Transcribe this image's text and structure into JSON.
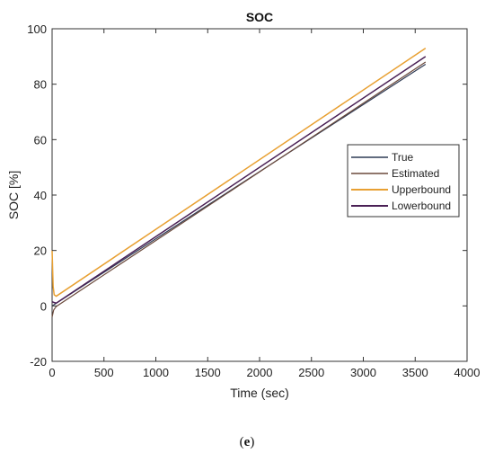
{
  "chart_data": {
    "type": "line",
    "title": "SOC",
    "xlabel": "Time (sec)",
    "ylabel": "SOC [%]",
    "xlim": [
      0,
      4000
    ],
    "ylim": [
      -20,
      100
    ],
    "xticks": [
      "0",
      "500",
      "1000",
      "1500",
      "2000",
      "2500",
      "3000",
      "3500",
      "4000"
    ],
    "yticks": [
      "-20",
      "0",
      "20",
      "40",
      "60",
      "80",
      "100"
    ],
    "grid": false,
    "legend_position": "center-right",
    "series": [
      {
        "name": "True",
        "color": "#2f3b55",
        "x": [
          0,
          3600
        ],
        "y": [
          0.0,
          87.2
        ]
      },
      {
        "name": "Estimated",
        "color": "#6b4a3c",
        "x": [
          0,
          15,
          40,
          3600
        ],
        "y": [
          -4.0,
          -1.5,
          -0.2,
          88.0
        ]
      },
      {
        "name": "Upperbound",
        "color": "#e8a032",
        "x": [
          0,
          10,
          20,
          40,
          3600
        ],
        "y": [
          20.0,
          7.0,
          4.0,
          3.5,
          93.0
        ]
      },
      {
        "name": "Lowerbound",
        "color": "#4a2055",
        "x": [
          0,
          20,
          40,
          3600
        ],
        "y": [
          1.5,
          1.2,
          1.0,
          90.0
        ]
      }
    ]
  },
  "caption": {
    "open": "(",
    "letter": "e",
    "close": ")"
  }
}
